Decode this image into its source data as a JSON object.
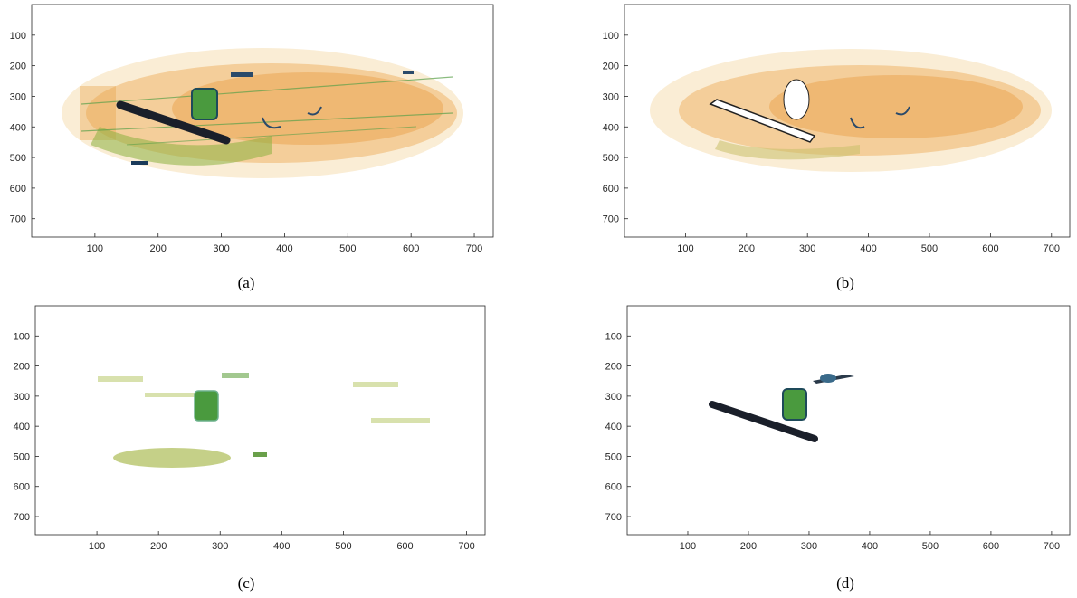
{
  "figure": {
    "panels": [
      {
        "caption": "(a)",
        "xlim": [
          0,
          730
        ],
        "ylim": [
          0,
          760
        ],
        "xticks": [
          100,
          200,
          300,
          400,
          500,
          600,
          700
        ],
        "yticks": [
          100,
          200,
          300,
          400,
          500,
          600,
          700
        ],
        "content": "full-xray"
      },
      {
        "caption": "(b)",
        "xlim": [
          0,
          730
        ],
        "ylim": [
          0,
          760
        ],
        "xticks": [
          100,
          200,
          300,
          400,
          500,
          600,
          700
        ],
        "yticks": [
          100,
          200,
          300,
          400,
          500,
          600,
          700
        ],
        "content": "objects-removed"
      },
      {
        "caption": "(c)",
        "xlim": [
          0,
          730
        ],
        "ylim": [
          0,
          760
        ],
        "xticks": [
          100,
          200,
          300,
          400,
          500,
          600,
          700
        ],
        "yticks": [
          100,
          200,
          300,
          400,
          500,
          600,
          700
        ],
        "content": "green-regions"
      },
      {
        "caption": "(d)",
        "xlim": [
          0,
          730
        ],
        "ylim": [
          0,
          760
        ],
        "xticks": [
          100,
          200,
          300,
          400,
          500,
          600,
          700
        ],
        "yticks": [
          100,
          200,
          300,
          400,
          500,
          600,
          700
        ],
        "content": "dark-objects"
      }
    ],
    "colors": {
      "orange": "#e8a54a",
      "light_orange": "#f3cf93",
      "green": "#5aa04a",
      "olive": "#b7c46a",
      "dark": "#1a1f2a",
      "blue": "#3a6a8a"
    }
  }
}
